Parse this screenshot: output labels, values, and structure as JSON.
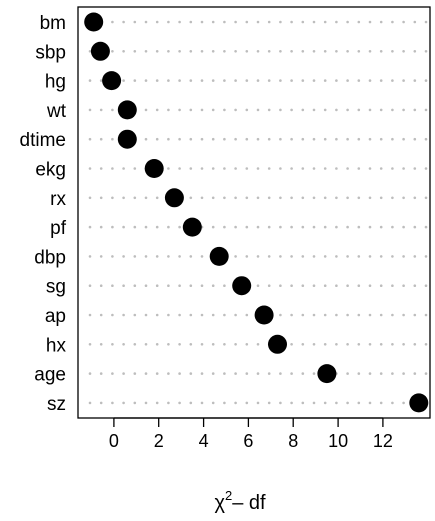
{
  "chart_data": {
    "type": "scatter",
    "variant": "dot-plot",
    "categories": [
      "bm",
      "sbp",
      "hg",
      "wt",
      "dtime",
      "ekg",
      "rx",
      "pf",
      "dbp",
      "sg",
      "ap",
      "hx",
      "age",
      "sz"
    ],
    "values": [
      -0.9,
      -0.6,
      -0.1,
      0.6,
      0.6,
      1.8,
      2.7,
      3.5,
      4.7,
      5.7,
      6.7,
      7.3,
      9.5,
      13.6
    ],
    "x_ticks": [
      0,
      2,
      4,
      6,
      8,
      10,
      12
    ],
    "x_tick_labels": [
      "0",
      "2",
      "4",
      "6",
      "8",
      "10",
      "12"
    ],
    "xlim": [
      -1.6,
      14.1
    ],
    "xlabel_main": "χ",
    "xlabel_sup": "2",
    "xlabel_rest": "– df",
    "ylabel": "",
    "title": "",
    "grid": true,
    "legend": "none",
    "point_color": "#000000",
    "grid_color": "#bdbdbd"
  }
}
